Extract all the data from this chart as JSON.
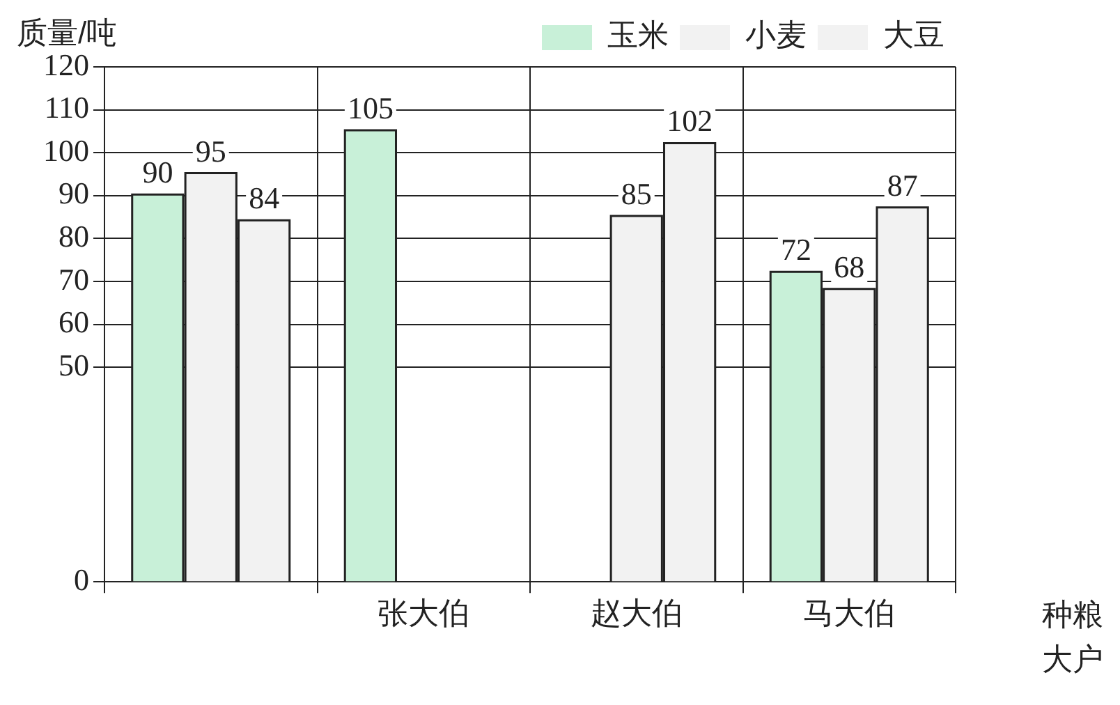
{
  "chart_data": {
    "type": "bar",
    "ylabel": "质量/吨",
    "xlabel": "种粮大户",
    "categories": [
      null,
      "张大伯",
      "赵大伯",
      "马大伯"
    ],
    "series": [
      {
        "name": "玉米",
        "color": "#c8f0d8",
        "values": [
          90,
          105,
          null,
          72
        ]
      },
      {
        "name": "小麦",
        "color": "#f2f2f2",
        "values": [
          95,
          null,
          85,
          68
        ]
      },
      {
        "name": "大豆",
        "color": "#f2f2f2",
        "values": [
          84,
          null,
          102,
          87
        ]
      }
    ],
    "ylim": [
      0,
      120
    ],
    "yticks": [
      0,
      50,
      60,
      70,
      80,
      90,
      100,
      110,
      120
    ],
    "grid": true,
    "legend": "top right",
    "data_labels": true
  }
}
